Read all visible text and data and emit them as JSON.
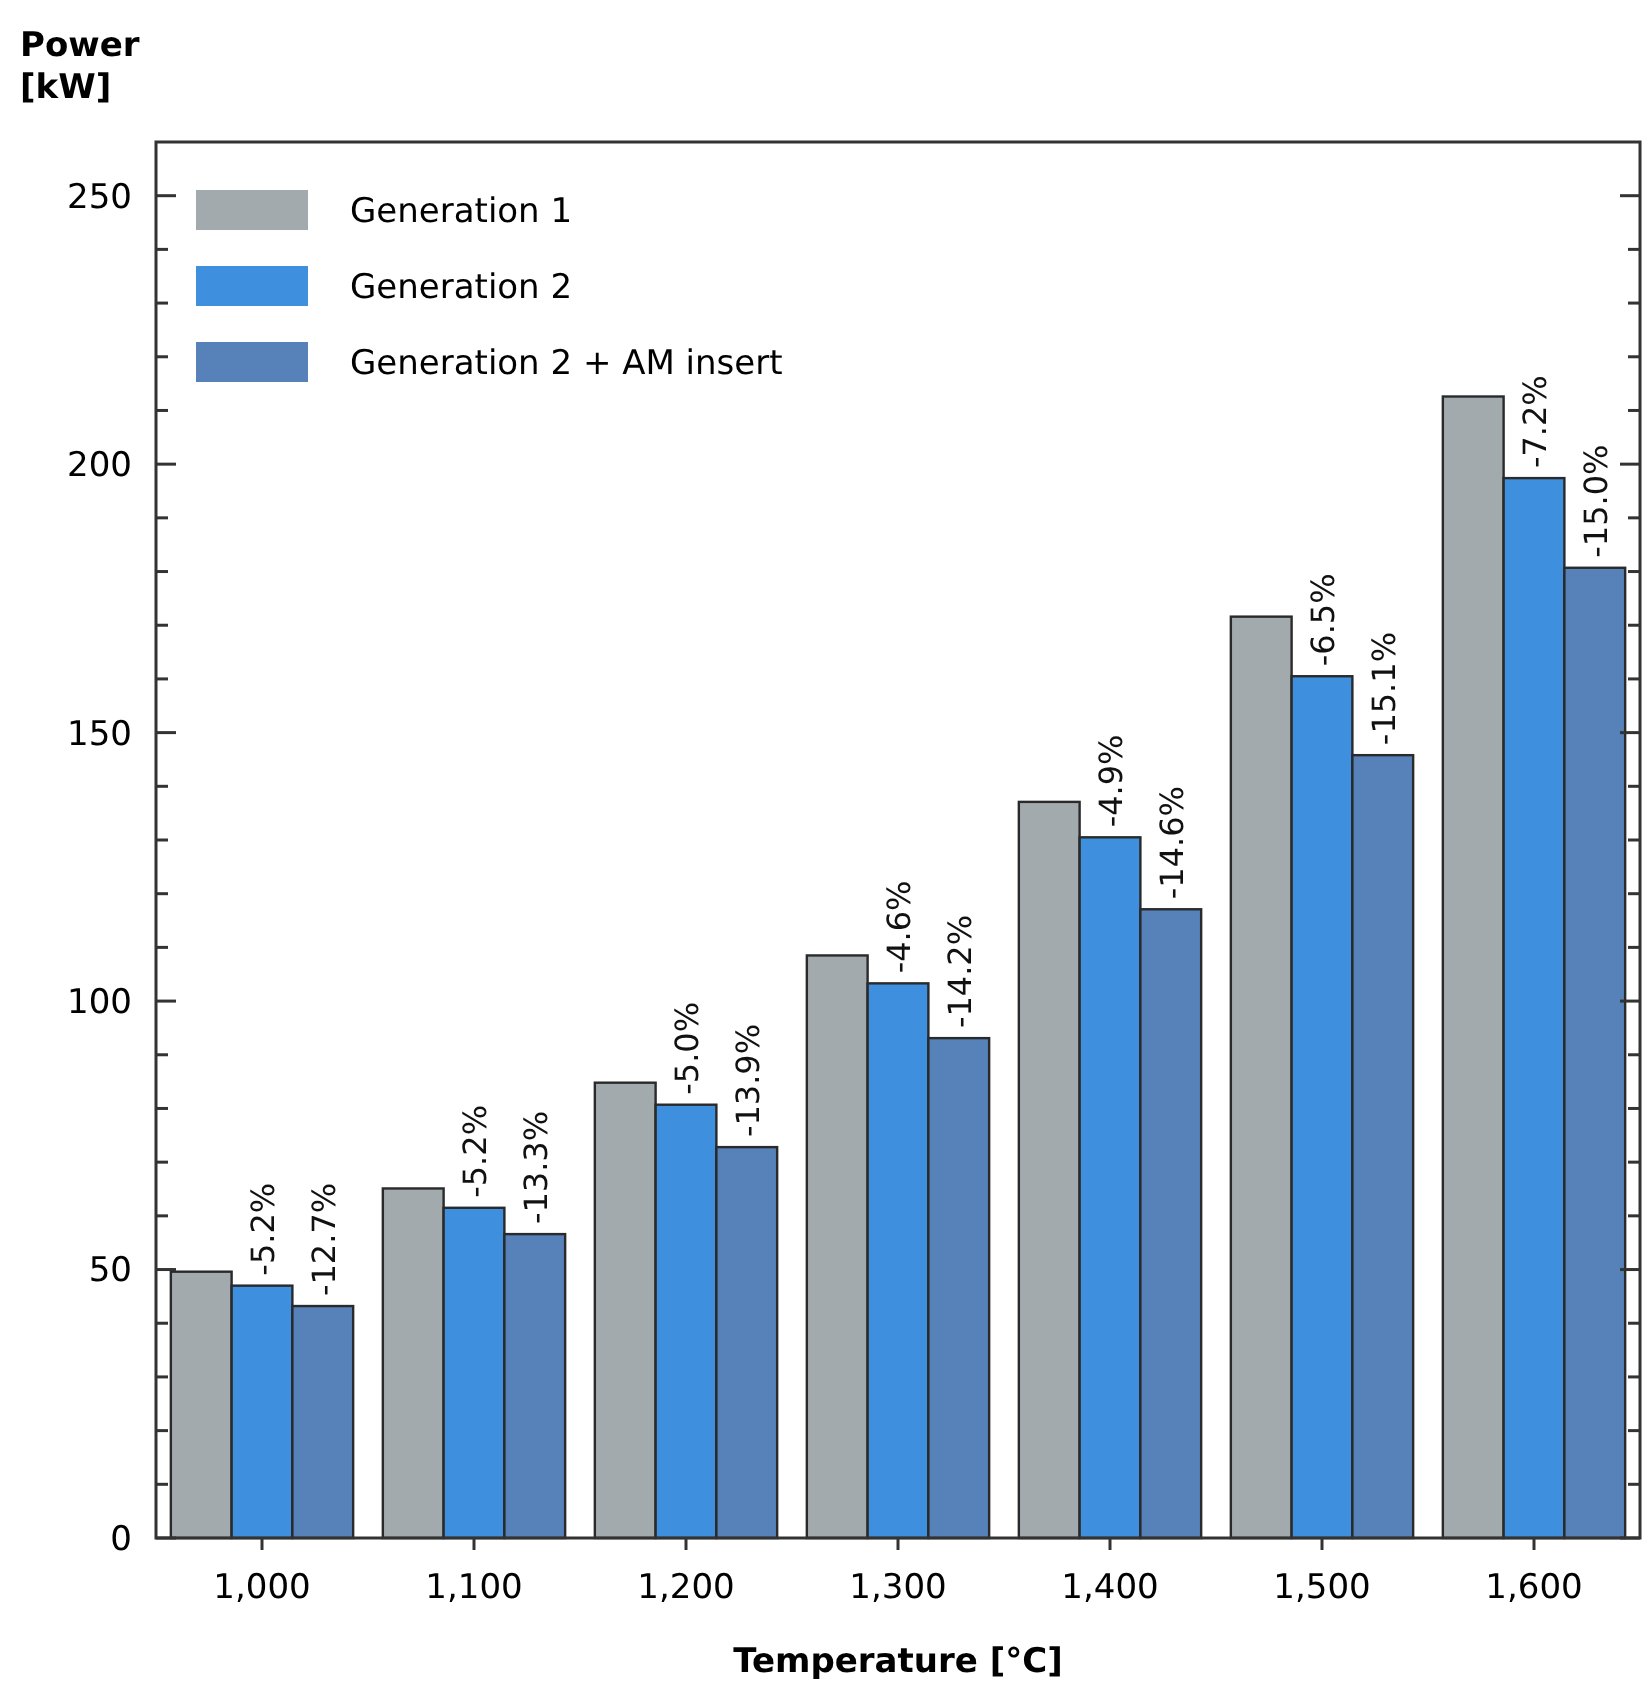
{
  "chart_data": {
    "type": "bar",
    "ylabel": "Power\n[kW]",
    "xlabel": "Temperature [°C]",
    "categories": [
      "1,000",
      "1,100",
      "1,200",
      "1,300",
      "1,400",
      "1,500",
      "1,600"
    ],
    "series": [
      {
        "name": "Generation 1",
        "color": "#a2aaad",
        "values": [
          49.6,
          65.1,
          84.8,
          108.5,
          137.1,
          171.6,
          212.6
        ]
      },
      {
        "name": "Generation 2",
        "color": "#3f8fdf",
        "values": [
          47.0,
          61.5,
          80.7,
          103.3,
          130.5,
          160.5,
          197.4
        ]
      },
      {
        "name": "Generation 2 + AM insert",
        "color": "#5681b9",
        "values": [
          43.2,
          56.6,
          72.8,
          93.1,
          117.1,
          145.8,
          180.7
        ]
      }
    ],
    "annotations": [
      {
        "text": "-5.2%",
        "x": "1,000",
        "y": 47.0
      },
      "-12.7%",
      {
        "text": "-5.2%",
        "x": "1,100",
        "y": 61.5
      },
      "-13.3%",
      {
        "text": "-5.0%",
        "x": "1,200",
        "y": 80.7
      },
      "-13.9%",
      {
        "text": "-4.6%",
        "x": "1,300",
        "y": 103.3
      },
      "-14.2%",
      {
        "text": "-4.9%",
        "x": "1,400",
        "y": 130.5
      },
      "-14.6%",
      {
        "text": "-6.5%",
        "x": "1,500",
        "y": 160.5
      },
      "-15.1%",
      {
        "text": "-7.2%",
        "x": "1,600",
        "y": 197.4
      },
      "-15.0%"
    ],
    "ylim": [
      0,
      260
    ],
    "yticks": [
      0,
      {
        "value": 10,
        "label": null
      },
      {
        "value": 20,
        "label": null
      },
      {
        "value": 30,
        "label": null
      },
      {
        "value": 40,
        "label": null
      },
      50,
      {
        "value": 60,
        "label": null
      },
      {
        "value": 70,
        "label": null
      },
      {
        "value": 80,
        "label": null
      },
      {
        "value": 90,
        "label": null
      },
      100,
      {
        "value": 110,
        "label": null
      },
      {
        "value": 120,
        "label": null
      },
      {
        "value": 130,
        "label": null
      },
      {
        "value": 140,
        "label": null
      },
      150,
      {
        "value": 160,
        "label": null
      },
      {
        "value": 170,
        "label": null
      },
      {
        "value": 180,
        "label": null
      },
      {
        "value": 190,
        "label": null
      },
      200,
      {
        "value": 210,
        "label": null
      },
      {
        "value": 220,
        "label": null
      },
      {
        "value": 230,
        "label": null
      },
      {
        "value": 240,
        "label": null
      },
      250
    ],
    "grid": false,
    "legend": "top left"
  }
}
